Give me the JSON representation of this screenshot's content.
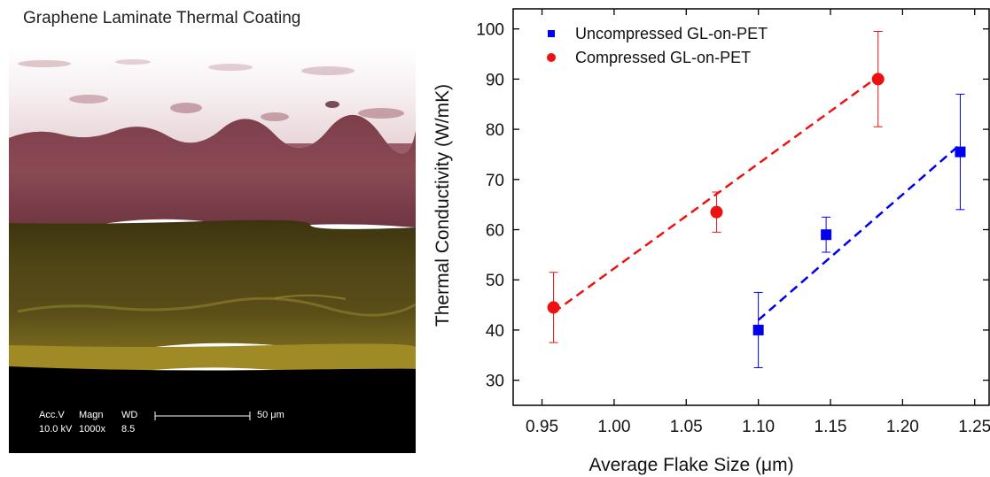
{
  "left_panel": {
    "title": "Graphene Laminate Thermal Coating",
    "sem_info": {
      "acc_label": "Acc.V",
      "magn_label": "Magn",
      "wd_label": "WD",
      "acc_value": "10.0 kV",
      "magn_value": "1000x",
      "wd_value": "8.5",
      "scale_label": "50 μm"
    }
  },
  "chart_data": {
    "type": "scatter",
    "title": "",
    "xlabel": "Average Flake Size (μm)",
    "ylabel": "Thermal Conductivity (W/mK)",
    "xlim": [
      0.93,
      1.26
    ],
    "ylim": [
      25,
      104
    ],
    "xticks": [
      "0.95",
      "1.00",
      "1.05",
      "1.10",
      "1.15",
      "1.20",
      "1.25"
    ],
    "xtick_values": [
      0.95,
      1.0,
      1.05,
      1.1,
      1.15,
      1.2,
      1.25
    ],
    "yticks": [
      "30",
      "40",
      "50",
      "60",
      "70",
      "80",
      "90",
      "100"
    ],
    "ytick_values": [
      30,
      40,
      50,
      60,
      70,
      80,
      90,
      100
    ],
    "legend_position": "top-left",
    "series": [
      {
        "name": "Uncompressed GL-on-PET",
        "color": "#0000ee",
        "marker": "square",
        "points": [
          {
            "x": 1.1,
            "y": 40.0,
            "err_low": 32.5,
            "err_high": 47.5
          },
          {
            "x": 1.147,
            "y": 59.0,
            "err_low": 55.5,
            "err_high": 62.5
          },
          {
            "x": 1.24,
            "y": 75.5,
            "err_low": 64.0,
            "err_high": 87.0
          }
        ],
        "fit": [
          [
            1.1,
            42.0
          ],
          [
            1.24,
            77.0
          ]
        ]
      },
      {
        "name": "Compressed GL-on-PET",
        "color": "#ee1111",
        "marker": "circle",
        "points": [
          {
            "x": 0.958,
            "y": 44.5,
            "err_low": 37.5,
            "err_high": 51.5
          },
          {
            "x": 1.071,
            "y": 63.5,
            "err_low": 59.5,
            "err_high": 67.5
          },
          {
            "x": 1.183,
            "y": 90.0,
            "err_low": 80.5,
            "err_high": 99.5
          }
        ],
        "fit": [
          [
            0.958,
            43.5
          ],
          [
            1.183,
            90.5
          ]
        ]
      }
    ]
  }
}
